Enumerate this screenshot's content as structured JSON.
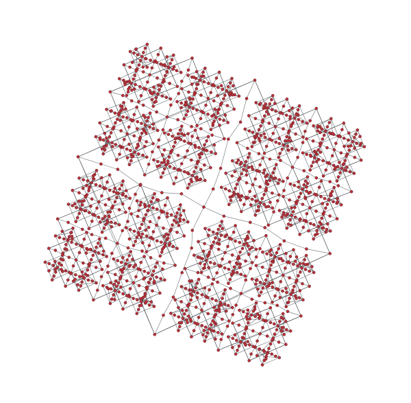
{
  "diagram": {
    "type": "network-graph",
    "layout": "fractal-rotated-square",
    "colors": {
      "background": "#ffffff",
      "node_fill": "#b3313a",
      "node_stroke": "#5a1a1e",
      "edge": "#3a3f44"
    },
    "structure": {
      "center_lobes": 4,
      "recursion_depth": 4,
      "rotation_degrees": 22
    }
  }
}
